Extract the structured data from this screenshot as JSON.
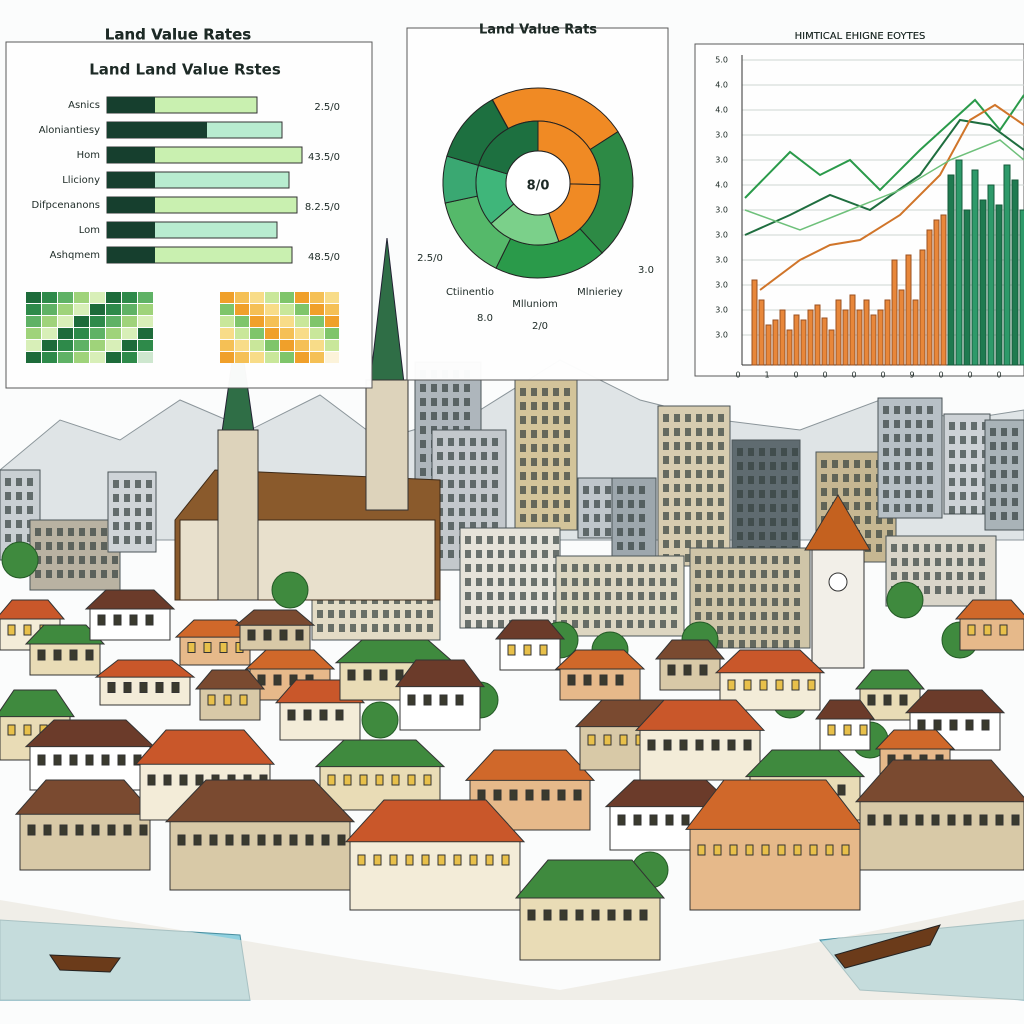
{
  "panel1": {
    "title": "Land Value Rates",
    "subtitle": "Land Land Value Rstes",
    "rows": [
      {
        "label": "Asnics",
        "value": "2.5/0"
      },
      {
        "label": "Aloniantiesy",
        "value": ""
      },
      {
        "label": "Hom",
        "value": "43.5/0"
      },
      {
        "label": "Lliciony",
        "value": ""
      },
      {
        "label": "Difpcenanons",
        "value": "8.2.5/0"
      },
      {
        "label": "Lom",
        "value": ""
      },
      {
        "label": "Ashqmem",
        "value": "48.5/0"
      }
    ]
  },
  "panel2": {
    "title": "Land Value Rats",
    "center": "8/0",
    "labels": [
      "Ctiinentio",
      "Mlluniom",
      "Mlnieriey"
    ],
    "sub_labels": [
      "2.5/0",
      "8.0",
      "2/0",
      "3.0"
    ]
  },
  "panel3": {
    "title": "HIMTICAL EHIGNE EOYTES",
    "y_labels": [
      "5.0",
      "4.0",
      "4.0",
      "3.0",
      "3.0",
      "4.0",
      "3.0",
      "3.0",
      "3.0",
      "3.0",
      "3.0",
      "3.0"
    ],
    "x_labels": [
      "0",
      "1",
      "0",
      "0",
      "0",
      "0",
      "9",
      "0",
      "0",
      "0"
    ]
  }
}
